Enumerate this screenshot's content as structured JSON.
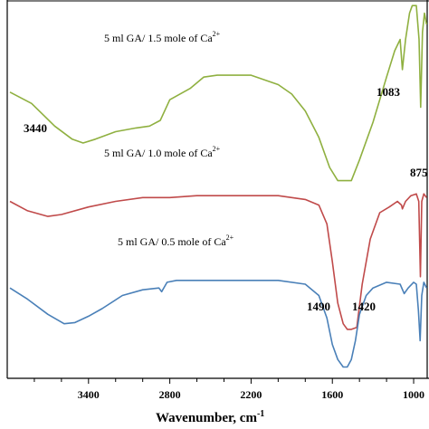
{
  "chart_data": {
    "type": "line",
    "title": "",
    "xlabel": "Wavenumber, cm",
    "xlabel_superscript": "-1",
    "ylabel": "",
    "xlim": [
      4000,
      900
    ],
    "x_reversed": true,
    "ylim": [
      0,
      100
    ],
    "grid": false,
    "legend": "none",
    "x_ticks": [
      3400,
      2800,
      2200,
      1600,
      1000
    ],
    "x_tick_labels": [
      "3400",
      "2800",
      "2200",
      "1600",
      "1000"
    ],
    "series": [
      {
        "color": "#8fb040",
        "label_main": "5 ml  GA/ 1.5 mole of   Ca",
        "label_sup": "2+",
        "points": [
          [
            3980,
            76
          ],
          [
            3820,
            73
          ],
          [
            3650,
            67
          ],
          [
            3520,
            63.5
          ],
          [
            3440,
            62.5
          ],
          [
            3350,
            63.5
          ],
          [
            3200,
            65.5
          ],
          [
            3050,
            66.5
          ],
          [
            2950,
            67
          ],
          [
            2870,
            68.5
          ],
          [
            2800,
            74
          ],
          [
            2650,
            77
          ],
          [
            2550,
            80
          ],
          [
            2450,
            80.5
          ],
          [
            2200,
            80.5
          ],
          [
            2000,
            78
          ],
          [
            1900,
            75.5
          ],
          [
            1800,
            71
          ],
          [
            1700,
            64
          ],
          [
            1620,
            56
          ],
          [
            1560,
            52.5
          ],
          [
            1500,
            52.5
          ],
          [
            1460,
            52.5
          ],
          [
            1400,
            58
          ],
          [
            1300,
            68
          ],
          [
            1200,
            80
          ],
          [
            1140,
            87
          ],
          [
            1100,
            90
          ],
          [
            1083,
            82
          ],
          [
            1060,
            90
          ],
          [
            1030,
            97
          ],
          [
            1010,
            99
          ],
          [
            980,
            99
          ],
          [
            960,
            90
          ],
          [
            948,
            72
          ],
          [
            935,
            92
          ],
          [
            920,
            97
          ],
          [
            905,
            94
          ]
        ]
      },
      {
        "color": "#c04a4a",
        "label_main": "5 ml  GA/ 1.0 mole of   Ca",
        "label_sup": "2+",
        "points": [
          [
            3980,
            47
          ],
          [
            3850,
            44.5
          ],
          [
            3700,
            43
          ],
          [
            3600,
            43.5
          ],
          [
            3400,
            45.5
          ],
          [
            3200,
            47
          ],
          [
            3000,
            48
          ],
          [
            2800,
            48
          ],
          [
            2600,
            48.5
          ],
          [
            2200,
            48.5
          ],
          [
            2000,
            48.5
          ],
          [
            1800,
            47.5
          ],
          [
            1700,
            46
          ],
          [
            1640,
            41
          ],
          [
            1600,
            31
          ],
          [
            1560,
            20
          ],
          [
            1520,
            14.5
          ],
          [
            1490,
            13
          ],
          [
            1460,
            13
          ],
          [
            1420,
            13.5
          ],
          [
            1380,
            25
          ],
          [
            1320,
            37
          ],
          [
            1250,
            44
          ],
          [
            1180,
            45.5
          ],
          [
            1120,
            47
          ],
          [
            1090,
            46
          ],
          [
            1083,
            45
          ],
          [
            1060,
            47
          ],
          [
            1020,
            48.5
          ],
          [
            980,
            49
          ],
          [
            962,
            47
          ],
          [
            950,
            27
          ],
          [
            940,
            47
          ],
          [
            925,
            49
          ],
          [
            905,
            48
          ]
        ]
      },
      {
        "color": "#4a80b8",
        "label_main": "5 ml  GA/ 0.5 mole of   Ca",
        "label_sup": "2+",
        "points": [
          [
            3980,
            24
          ],
          [
            3850,
            21
          ],
          [
            3700,
            17
          ],
          [
            3580,
            14.5
          ],
          [
            3500,
            14.8
          ],
          [
            3400,
            16.5
          ],
          [
            3300,
            18.5
          ],
          [
            3150,
            22
          ],
          [
            3000,
            23.5
          ],
          [
            2880,
            24
          ],
          [
            2860,
            23
          ],
          [
            2820,
            25.5
          ],
          [
            2750,
            26
          ],
          [
            2400,
            26
          ],
          [
            2000,
            26
          ],
          [
            1800,
            25
          ],
          [
            1700,
            22
          ],
          [
            1640,
            16
          ],
          [
            1600,
            9
          ],
          [
            1560,
            5
          ],
          [
            1520,
            3
          ],
          [
            1490,
            3
          ],
          [
            1460,
            5
          ],
          [
            1430,
            10
          ],
          [
            1400,
            17
          ],
          [
            1350,
            22
          ],
          [
            1300,
            24
          ],
          [
            1200,
            25.5
          ],
          [
            1100,
            25
          ],
          [
            1070,
            22.5
          ],
          [
            1040,
            24
          ],
          [
            1000,
            25.5
          ],
          [
            980,
            25
          ],
          [
            965,
            18
          ],
          [
            952,
            10
          ],
          [
            940,
            22
          ],
          [
            925,
            25.5
          ],
          [
            905,
            24
          ]
        ]
      }
    ],
    "annotations": [
      "3440",
      "1083",
      "875",
      "1490",
      "1420"
    ]
  }
}
